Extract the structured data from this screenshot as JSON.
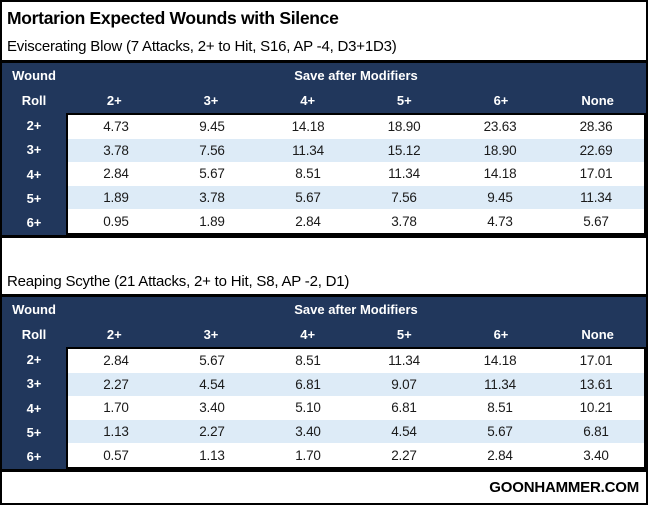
{
  "title": "Mortarion Expected Wounds with Silence",
  "footer": "GOONHAMMER.COM",
  "colors": {
    "header_bg": "#21375C",
    "row_alt_bg": "#DDEBF7",
    "border": "#000000",
    "header_text": "#FFFFFF"
  },
  "tables": [
    {
      "subtitle": "Eviscerating Blow (7 Attacks, 2+ to Hit, S16, AP -4, D3+1D3)",
      "corner_line1": "Wound",
      "corner_line2": "Roll",
      "group_header": "Save after Modifiers",
      "columns": [
        "2+",
        "3+",
        "4+",
        "5+",
        "6+",
        "None"
      ],
      "rows": [
        {
          "label": "2+",
          "values": [
            "4.73",
            "9.45",
            "14.18",
            "18.90",
            "23.63",
            "28.36"
          ]
        },
        {
          "label": "3+",
          "values": [
            "3.78",
            "7.56",
            "11.34",
            "15.12",
            "18.90",
            "22.69"
          ]
        },
        {
          "label": "4+",
          "values": [
            "2.84",
            "5.67",
            "8.51",
            "11.34",
            "14.18",
            "17.01"
          ]
        },
        {
          "label": "5+",
          "values": [
            "1.89",
            "3.78",
            "5.67",
            "7.56",
            "9.45",
            "11.34"
          ]
        },
        {
          "label": "6+",
          "values": [
            "0.95",
            "1.89",
            "2.84",
            "3.78",
            "4.73",
            "5.67"
          ]
        }
      ]
    },
    {
      "subtitle": "Reaping Scythe (21 Attacks, 2+ to Hit, S8, AP -2, D1)",
      "corner_line1": "Wound",
      "corner_line2": "Roll",
      "group_header": "Save after Modifiers",
      "columns": [
        "2+",
        "3+",
        "4+",
        "5+",
        "6+",
        "None"
      ],
      "rows": [
        {
          "label": "2+",
          "values": [
            "2.84",
            "5.67",
            "8.51",
            "11.34",
            "14.18",
            "17.01"
          ]
        },
        {
          "label": "3+",
          "values": [
            "2.27",
            "4.54",
            "6.81",
            "9.07",
            "11.34",
            "13.61"
          ]
        },
        {
          "label": "4+",
          "values": [
            "1.70",
            "3.40",
            "5.10",
            "6.81",
            "8.51",
            "10.21"
          ]
        },
        {
          "label": "5+",
          "values": [
            "1.13",
            "2.27",
            "3.40",
            "4.54",
            "5.67",
            "6.81"
          ]
        },
        {
          "label": "6+",
          "values": [
            "0.57",
            "1.13",
            "1.70",
            "2.27",
            "2.84",
            "3.40"
          ]
        }
      ]
    }
  ],
  "chart_data": [
    {
      "type": "table",
      "title": "Eviscerating Blow (7 Attacks, 2+ to Hit, S16, AP -4, D3+1D3)",
      "row_axis_label": "Wound Roll",
      "column_group_label": "Save after Modifiers",
      "columns": [
        "2+",
        "3+",
        "4+",
        "5+",
        "6+",
        "None"
      ],
      "row_labels": [
        "2+",
        "3+",
        "4+",
        "5+",
        "6+"
      ],
      "values": [
        [
          4.73,
          9.45,
          14.18,
          18.9,
          23.63,
          28.36
        ],
        [
          3.78,
          7.56,
          11.34,
          15.12,
          18.9,
          22.69
        ],
        [
          2.84,
          5.67,
          8.51,
          11.34,
          14.18,
          17.01
        ],
        [
          1.89,
          3.78,
          5.67,
          7.56,
          9.45,
          11.34
        ],
        [
          0.95,
          1.89,
          2.84,
          3.78,
          4.73,
          5.67
        ]
      ]
    },
    {
      "type": "table",
      "title": "Reaping Scythe (21 Attacks, 2+ to Hit, S8, AP -2, D1)",
      "row_axis_label": "Wound Roll",
      "column_group_label": "Save after Modifiers",
      "columns": [
        "2+",
        "3+",
        "4+",
        "5+",
        "6+",
        "None"
      ],
      "row_labels": [
        "2+",
        "3+",
        "4+",
        "5+",
        "6+"
      ],
      "values": [
        [
          2.84,
          5.67,
          8.51,
          11.34,
          14.18,
          17.01
        ],
        [
          2.27,
          4.54,
          6.81,
          9.07,
          11.34,
          13.61
        ],
        [
          1.7,
          3.4,
          5.1,
          6.81,
          8.51,
          10.21
        ],
        [
          1.13,
          2.27,
          3.4,
          4.54,
          5.67,
          6.81
        ],
        [
          0.57,
          1.13,
          1.7,
          2.27,
          2.84,
          3.4
        ]
      ]
    }
  ]
}
